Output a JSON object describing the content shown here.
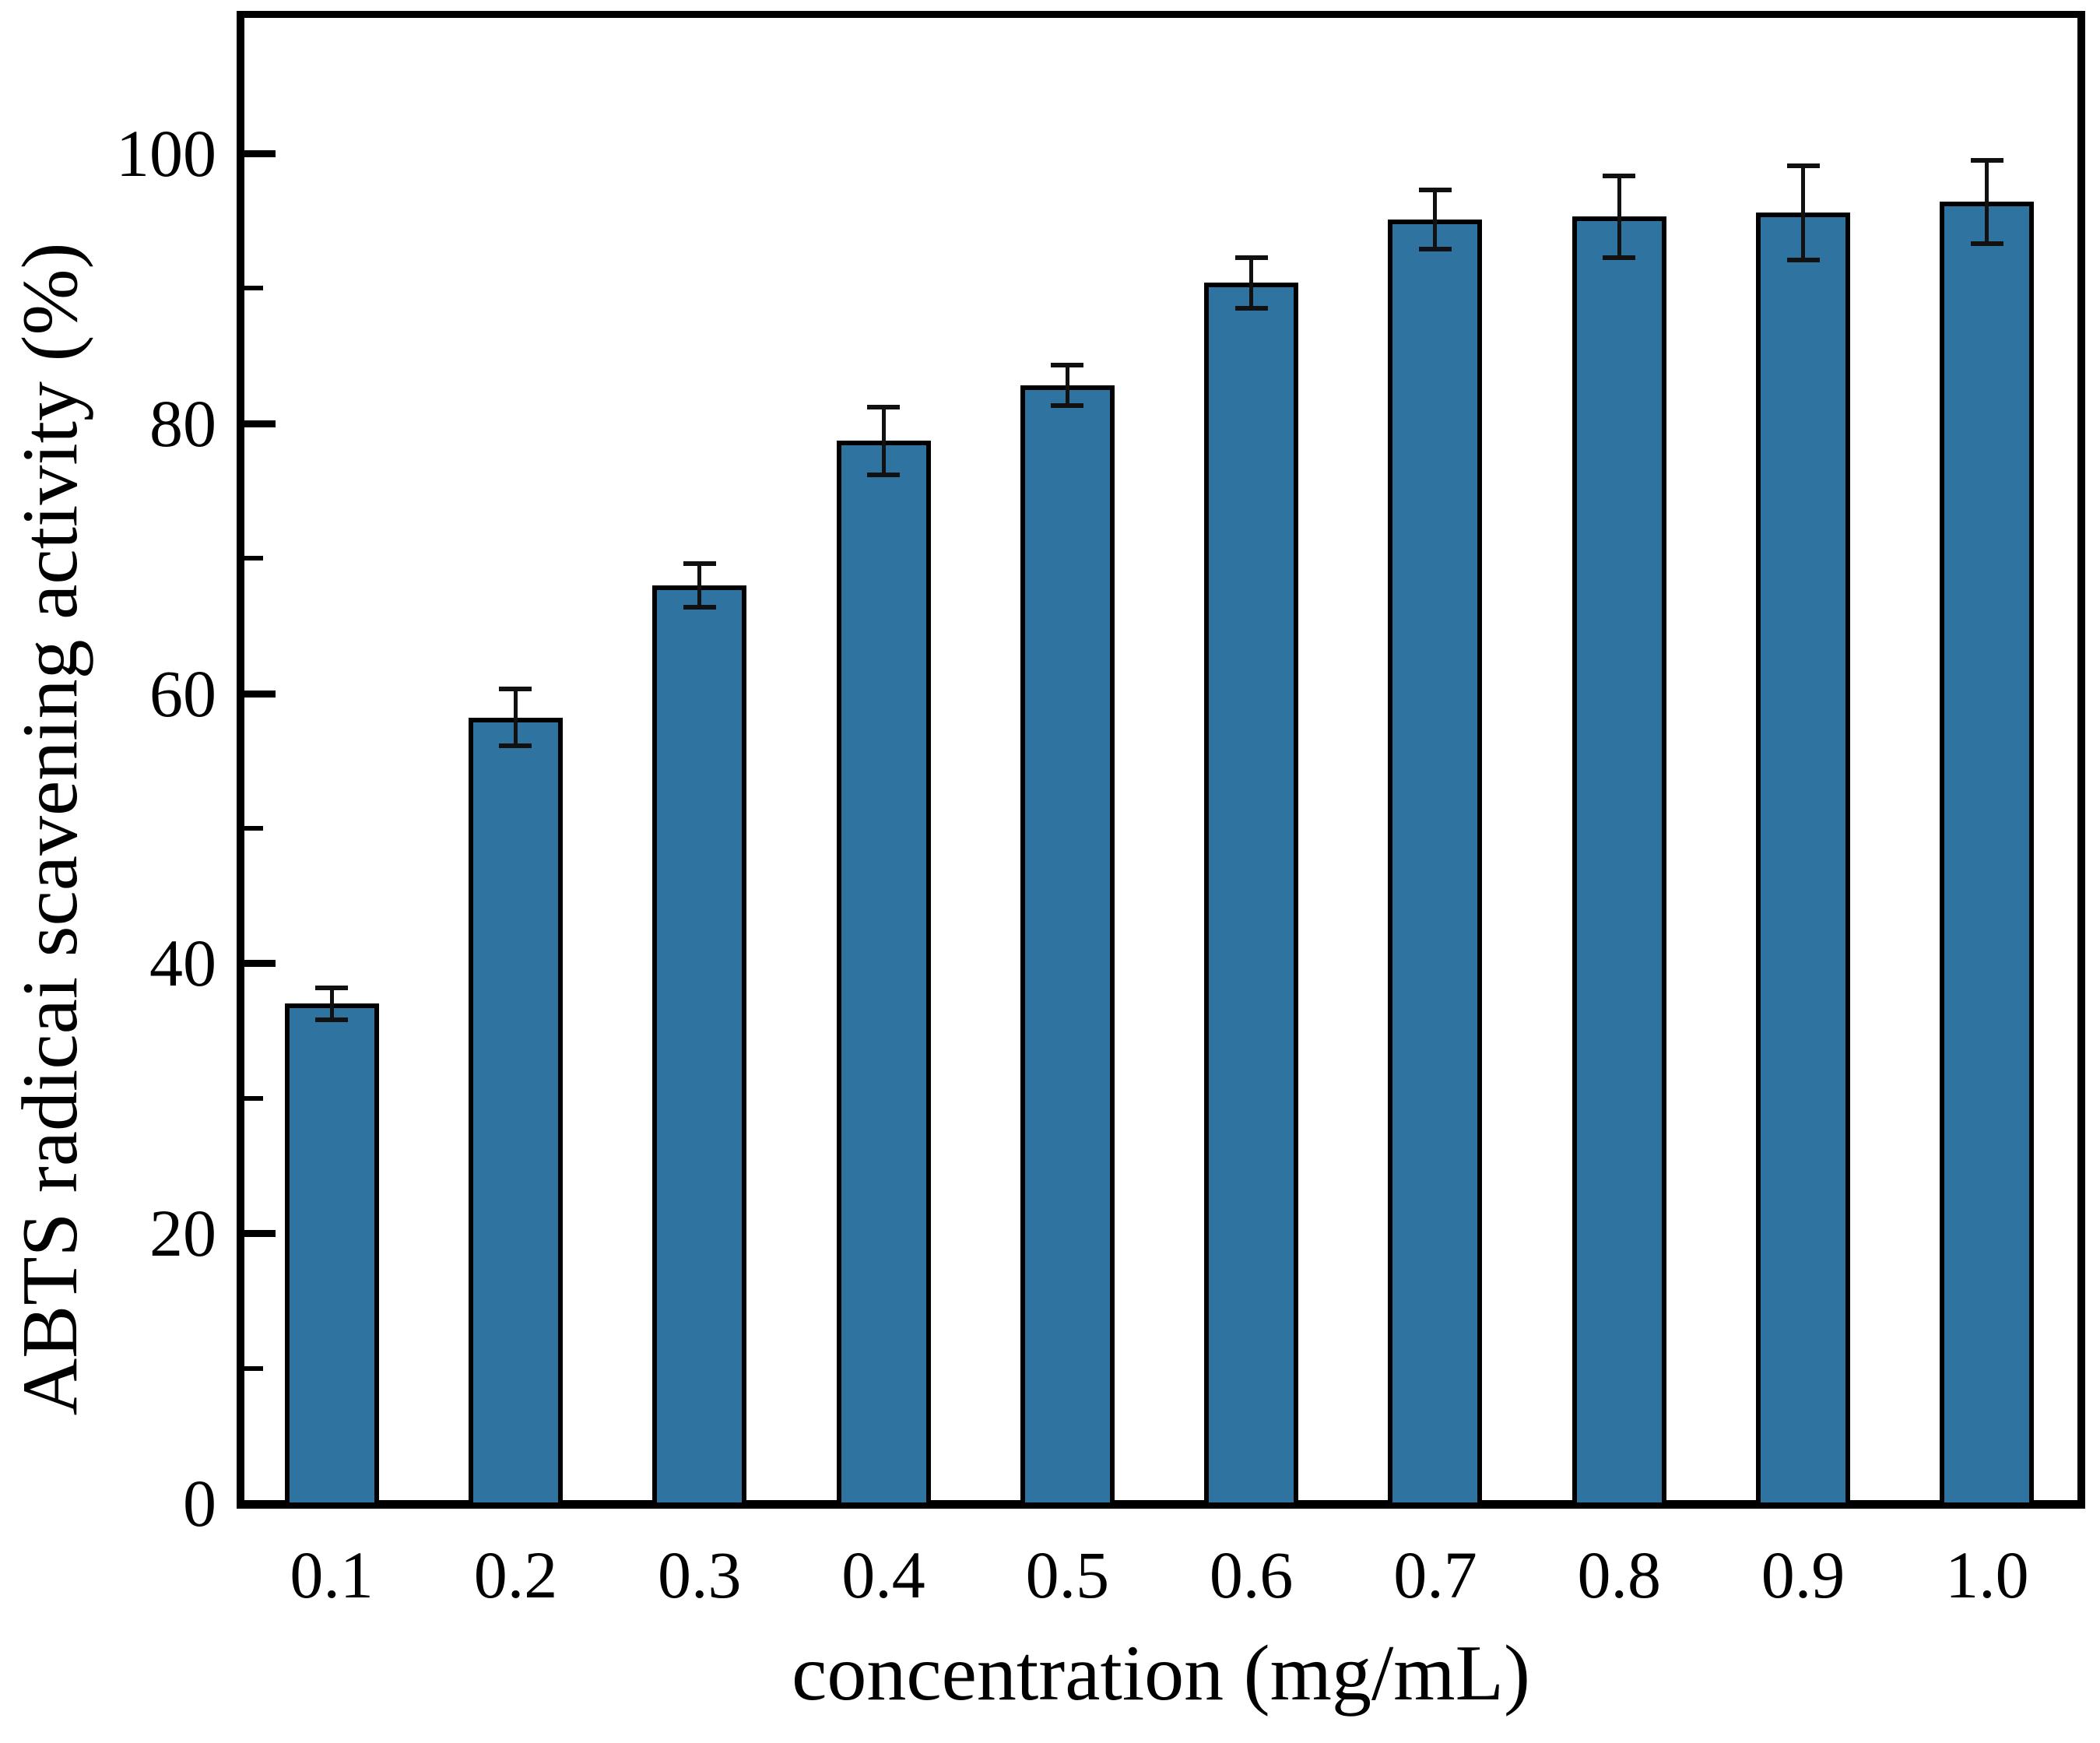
{
  "chart_data": {
    "type": "bar",
    "title": "",
    "xlabel": "concentration (mg/mL)",
    "ylabel": "ABTS radicai scavening activity (%)",
    "categories": [
      "0.1",
      "0.2",
      "0.3",
      "0.4",
      "0.5",
      "0.6",
      "0.7",
      "0.8",
      "0.9",
      "1.0"
    ],
    "values": [
      37.0,
      58.2,
      68.0,
      78.7,
      82.8,
      90.4,
      95.1,
      95.3,
      95.6,
      96.4
    ],
    "errors": [
      1.2,
      2.1,
      1.6,
      2.5,
      1.5,
      1.9,
      2.2,
      3.0,
      3.5,
      3.1
    ],
    "yticks": [
      0,
      20,
      40,
      60,
      80,
      100
    ],
    "minor_yticks": [
      10,
      30,
      50,
      70,
      90
    ],
    "ylim": [
      0,
      110.5
    ],
    "grid": false,
    "legend_position": "none",
    "bar_color": "#2F74A0",
    "bar_border_color": "#000000",
    "error_bar_color": "#111111",
    "axis_color": "#000000"
  }
}
